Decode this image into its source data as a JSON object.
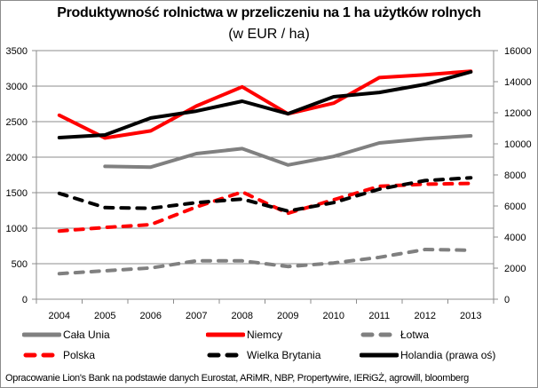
{
  "chart_data": {
    "type": "line",
    "title": "Produktywność rolnictwa w przeliczeniu na 1 ha użytków rolnych",
    "subtitle": "(w EUR / ha)",
    "xlabel": "",
    "ylabel": "",
    "categories": [
      "2004",
      "2005",
      "2006",
      "2007",
      "2008",
      "2009",
      "2010",
      "2011",
      "2012",
      "2013"
    ],
    "y_left": {
      "min": 0,
      "max": 3500,
      "step": 500,
      "ticks": [
        "0",
        "500",
        "1000",
        "1500",
        "2000",
        "2500",
        "3000",
        "3500"
      ]
    },
    "y_right": {
      "min": 0,
      "max": 16000,
      "step": 2000,
      "ticks": [
        "0",
        "2000",
        "4000",
        "6000",
        "8000",
        "10000",
        "12000",
        "14000",
        "16000"
      ]
    },
    "grid": true,
    "legend_position": "bottom",
    "series": [
      {
        "name": "Cała Unia",
        "axis": "left",
        "color": "#808080",
        "dash": false,
        "values": [
          null,
          1870,
          1860,
          2050,
          2120,
          1890,
          2010,
          2200,
          2260,
          2300
        ]
      },
      {
        "name": "Niemcy",
        "axis": "left",
        "color": "#ff0000",
        "dash": false,
        "values": [
          2590,
          2270,
          2370,
          2720,
          2990,
          2610,
          2760,
          3120,
          3160,
          3210
        ]
      },
      {
        "name": "Łotwa",
        "axis": "left",
        "color": "#808080",
        "dash": true,
        "values": [
          360,
          400,
          440,
          540,
          540,
          460,
          510,
          590,
          700,
          690
        ]
      },
      {
        "name": "Polska",
        "axis": "left",
        "color": "#ff0000",
        "dash": true,
        "values": [
          960,
          1010,
          1050,
          1300,
          1510,
          1210,
          1400,
          1590,
          1620,
          1630
        ]
      },
      {
        "name": "Wielka Brytania",
        "axis": "left",
        "color": "#000000",
        "dash": true,
        "values": [
          1490,
          1290,
          1280,
          1360,
          1410,
          1240,
          1360,
          1550,
          1670,
          1710
        ]
      },
      {
        "name": "Holandia (prawa oś)",
        "axis": "right",
        "color": "#000000",
        "dash": false,
        "values": [
          10400,
          10570,
          11660,
          12110,
          12740,
          11940,
          13030,
          13310,
          13830,
          14630
        ]
      }
    ]
  },
  "legend": {
    "items": [
      {
        "label": "Cała Unia"
      },
      {
        "label": "Niemcy"
      },
      {
        "label": "Łotwa"
      },
      {
        "label": "Polska"
      },
      {
        "label": "Wielka Brytania"
      },
      {
        "label": "Holandia (prawa oś)"
      }
    ]
  },
  "source": "Opracowanie Lion's Bank na podstawie danych Eurostat, ARiMR, NBP, Propertywire, IERiGŻ, agrowill, bloomberg"
}
